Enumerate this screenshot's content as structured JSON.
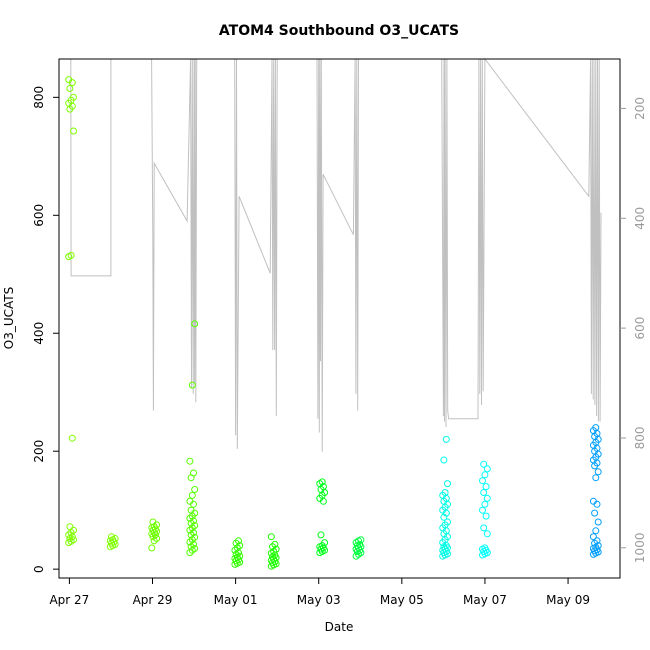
{
  "chart_data": {
    "type": "scatter",
    "title": "ATOM4 Southbound O3_UCATS",
    "xlabel": "Date",
    "ylabel": "O3_UCATS",
    "x_tick_labels": [
      "Apr 27",
      "Apr 29",
      "May 01",
      "May 03",
      "May 05",
      "May 07",
      "May 09"
    ],
    "x_tick_dates": [
      "2018-04-27",
      "2018-04-29",
      "2018-05-01",
      "2018-05-03",
      "2018-05-05",
      "2018-05-07",
      "2018-05-09"
    ],
    "xlim": [
      "2018-04-26T18:00",
      "2018-05-10T06:00"
    ],
    "ylim": [
      -15,
      865
    ],
    "y_ticks": [
      0,
      200,
      400,
      600,
      800
    ],
    "y2_ticks": [
      200,
      400,
      600,
      800,
      1000
    ],
    "y2lim_reversed": [
      110,
      1055
    ],
    "y2_color": "#9a9a9a",
    "grid": false,
    "legend": "none",
    "marker": "open-circle",
    "color_scale": "rainbow by time (green to blue)",
    "scatter_groups": [
      {
        "color": "#7fff00",
        "x": "2018-04-27T01:00",
        "y": [
          45,
          47,
          50,
          52,
          55,
          58,
          62,
          66,
          72,
          222,
          530,
          532,
          743,
          780,
          785,
          790,
          795,
          800,
          815,
          825,
          830
        ]
      },
      {
        "color": "#80ff00",
        "x": "2018-04-28T01:00",
        "y": [
          38,
          40,
          42,
          44,
          46,
          48,
          50,
          52,
          55
        ]
      },
      {
        "color": "#6fff00",
        "x": "2018-04-29T01:00",
        "y": [
          36,
          48,
          52,
          55,
          58,
          60,
          62,
          64,
          66,
          68,
          70,
          72,
          75,
          80
        ]
      },
      {
        "color": "#55ff00",
        "x": "2018-04-29T23:00",
        "y": [
          28,
          32,
          35,
          38,
          42,
          46,
          50,
          54,
          58,
          62,
          66,
          70,
          74,
          78,
          82,
          86,
          90,
          95,
          100,
          110,
          115,
          125,
          135,
          155,
          163,
          183,
          312,
          416
        ]
      },
      {
        "color": "#33ff00",
        "x": "2018-05-01T01:00",
        "y": [
          8,
          10,
          12,
          14,
          16,
          18,
          20,
          22,
          25,
          28,
          32,
          36,
          40,
          44,
          48
        ]
      },
      {
        "color": "#1eff00",
        "x": "2018-05-01T22:00",
        "y": [
          5,
          7,
          9,
          11,
          13,
          15,
          17,
          19,
          21,
          24,
          27,
          30,
          34,
          38,
          42,
          55
        ]
      },
      {
        "color": "#00ff1a",
        "x": "2018-05-03T02:00",
        "y": [
          28,
          30,
          32,
          34,
          36,
          38,
          40,
          45,
          58,
          115,
          120,
          125,
          130,
          135,
          140,
          145,
          148
        ]
      },
      {
        "color": "#00ff40",
        "x": "2018-05-03T23:00",
        "y": [
          22,
          25,
          28,
          30,
          32,
          34,
          36,
          38,
          40,
          42,
          45,
          48,
          50
        ]
      },
      {
        "color": "#00ffe6",
        "x": "2018-05-06T01:00",
        "y": [
          22,
          24,
          26,
          28,
          30,
          32,
          34,
          36,
          38,
          40,
          45,
          50,
          55,
          60,
          65,
          70,
          75,
          80,
          88,
          95,
          100,
          105,
          110,
          115,
          120,
          125,
          130,
          145,
          185,
          220
        ]
      },
      {
        "color": "#00ffff",
        "x": "2018-05-07T00:00",
        "y": [
          24,
          26,
          28,
          30,
          32,
          34,
          36,
          60,
          70,
          90,
          100,
          110,
          120,
          130,
          140,
          150,
          160,
          170,
          178
        ]
      },
      {
        "color": "#009fff",
        "x": "2018-05-09T16:00",
        "y": [
          25,
          27,
          29,
          31,
          33,
          35,
          37,
          40,
          44,
          48,
          55,
          65,
          80,
          95,
          110,
          115,
          155,
          165,
          175,
          180,
          185,
          190,
          195,
          200,
          205,
          210,
          215,
          220,
          225,
          230,
          235,
          240
        ]
      }
    ],
    "pressure_series": {
      "name": "",
      "color": "#c0c0c0",
      "points": [
        [
          "2018-04-27T00:50",
          110
        ],
        [
          "2018-04-27T01:00",
          505
        ],
        [
          "2018-04-28T00:00",
          505
        ],
        [
          "2018-04-28T00:00",
          110
        ],
        [
          "2018-04-28T23:30",
          110
        ],
        [
          "2018-04-29T00:10",
          430
        ],
        [
          "2018-04-29T00:30",
          750
        ],
        [
          "2018-04-29T01:00",
          300
        ],
        [
          "2018-04-29T20:00",
          405
        ],
        [
          "2018-04-29T22:00",
          110
        ],
        [
          "2018-04-29T22:30",
          710
        ],
        [
          "2018-04-29T23:00",
          110
        ],
        [
          "2018-04-29T23:30",
          720
        ],
        [
          "2018-04-30T00:00",
          110
        ],
        [
          "2018-04-30T00:20",
          700
        ],
        [
          "2018-04-30T00:40",
          110
        ],
        [
          "2018-04-30T01:00",
          735
        ],
        [
          "2018-04-30T01:30",
          110
        ],
        [
          "2018-04-30T23:30",
          110
        ],
        [
          "2018-05-01T00:00",
          795
        ],
        [
          "2018-05-01T00:30",
          110
        ],
        [
          "2018-05-01T01:00",
          820
        ],
        [
          "2018-05-01T02:00",
          360
        ],
        [
          "2018-05-01T20:00",
          500
        ],
        [
          "2018-05-01T21:00",
          110
        ],
        [
          "2018-05-01T21:30",
          640
        ],
        [
          "2018-05-01T22:00",
          110
        ],
        [
          "2018-05-01T22:30",
          640
        ],
        [
          "2018-05-01T23:00",
          110
        ],
        [
          "2018-05-01T23:30",
          760
        ],
        [
          "2018-05-02T00:00",
          110
        ],
        [
          "2018-05-02T23:00",
          110
        ],
        [
          "2018-05-02T23:30",
          765
        ],
        [
          "2018-05-03T00:00",
          110
        ],
        [
          "2018-05-03T00:20",
          790
        ],
        [
          "2018-05-03T00:40",
          110
        ],
        [
          "2018-05-03T01:00",
          660
        ],
        [
          "2018-05-03T01:30",
          110
        ],
        [
          "2018-05-03T02:00",
          825
        ],
        [
          "2018-05-03T02:30",
          320
        ],
        [
          "2018-05-03T20:00",
          430
        ],
        [
          "2018-05-03T21:00",
          110
        ],
        [
          "2018-05-03T21:30",
          720
        ],
        [
          "2018-05-03T22:00",
          110
        ],
        [
          "2018-05-03T22:30",
          750
        ],
        [
          "2018-05-03T23:00",
          110
        ],
        [
          "2018-05-05T23:00",
          110
        ],
        [
          "2018-05-06T00:00",
          760
        ],
        [
          "2018-05-06T00:20",
          110
        ],
        [
          "2018-05-06T00:40",
          770
        ],
        [
          "2018-05-06T01:00",
          110
        ],
        [
          "2018-05-06T01:30",
          780
        ],
        [
          "2018-05-06T02:00",
          110
        ],
        [
          "2018-05-06T02:30",
          750
        ],
        [
          "2018-05-06T03:00",
          765
        ],
        [
          "2018-05-06T20:00",
          765
        ],
        [
          "2018-05-06T20:30",
          110
        ],
        [
          "2018-05-06T21:00",
          720
        ],
        [
          "2018-05-06T21:30",
          110
        ],
        [
          "2018-05-06T22:00",
          740
        ],
        [
          "2018-05-06T22:30",
          110
        ],
        [
          "2018-05-06T23:00",
          715
        ],
        [
          "2018-05-07T00:00",
          110
        ],
        [
          "2018-05-09T12:00",
          360
        ],
        [
          "2018-05-09T13:00",
          110
        ],
        [
          "2018-05-09T13:30",
          720
        ],
        [
          "2018-05-09T14:00",
          110
        ],
        [
          "2018-05-09T14:30",
          730
        ],
        [
          "2018-05-09T15:00",
          110
        ],
        [
          "2018-05-09T15:30",
          740
        ],
        [
          "2018-05-09T16:00",
          110
        ],
        [
          "2018-05-09T16:30",
          760
        ],
        [
          "2018-05-09T17:00",
          110
        ],
        [
          "2018-05-09T17:30",
          770
        ],
        [
          "2018-05-09T18:00",
          110
        ],
        [
          "2018-05-09T18:30",
          770
        ],
        [
          "2018-05-09T19:00",
          390
        ]
      ]
    }
  }
}
